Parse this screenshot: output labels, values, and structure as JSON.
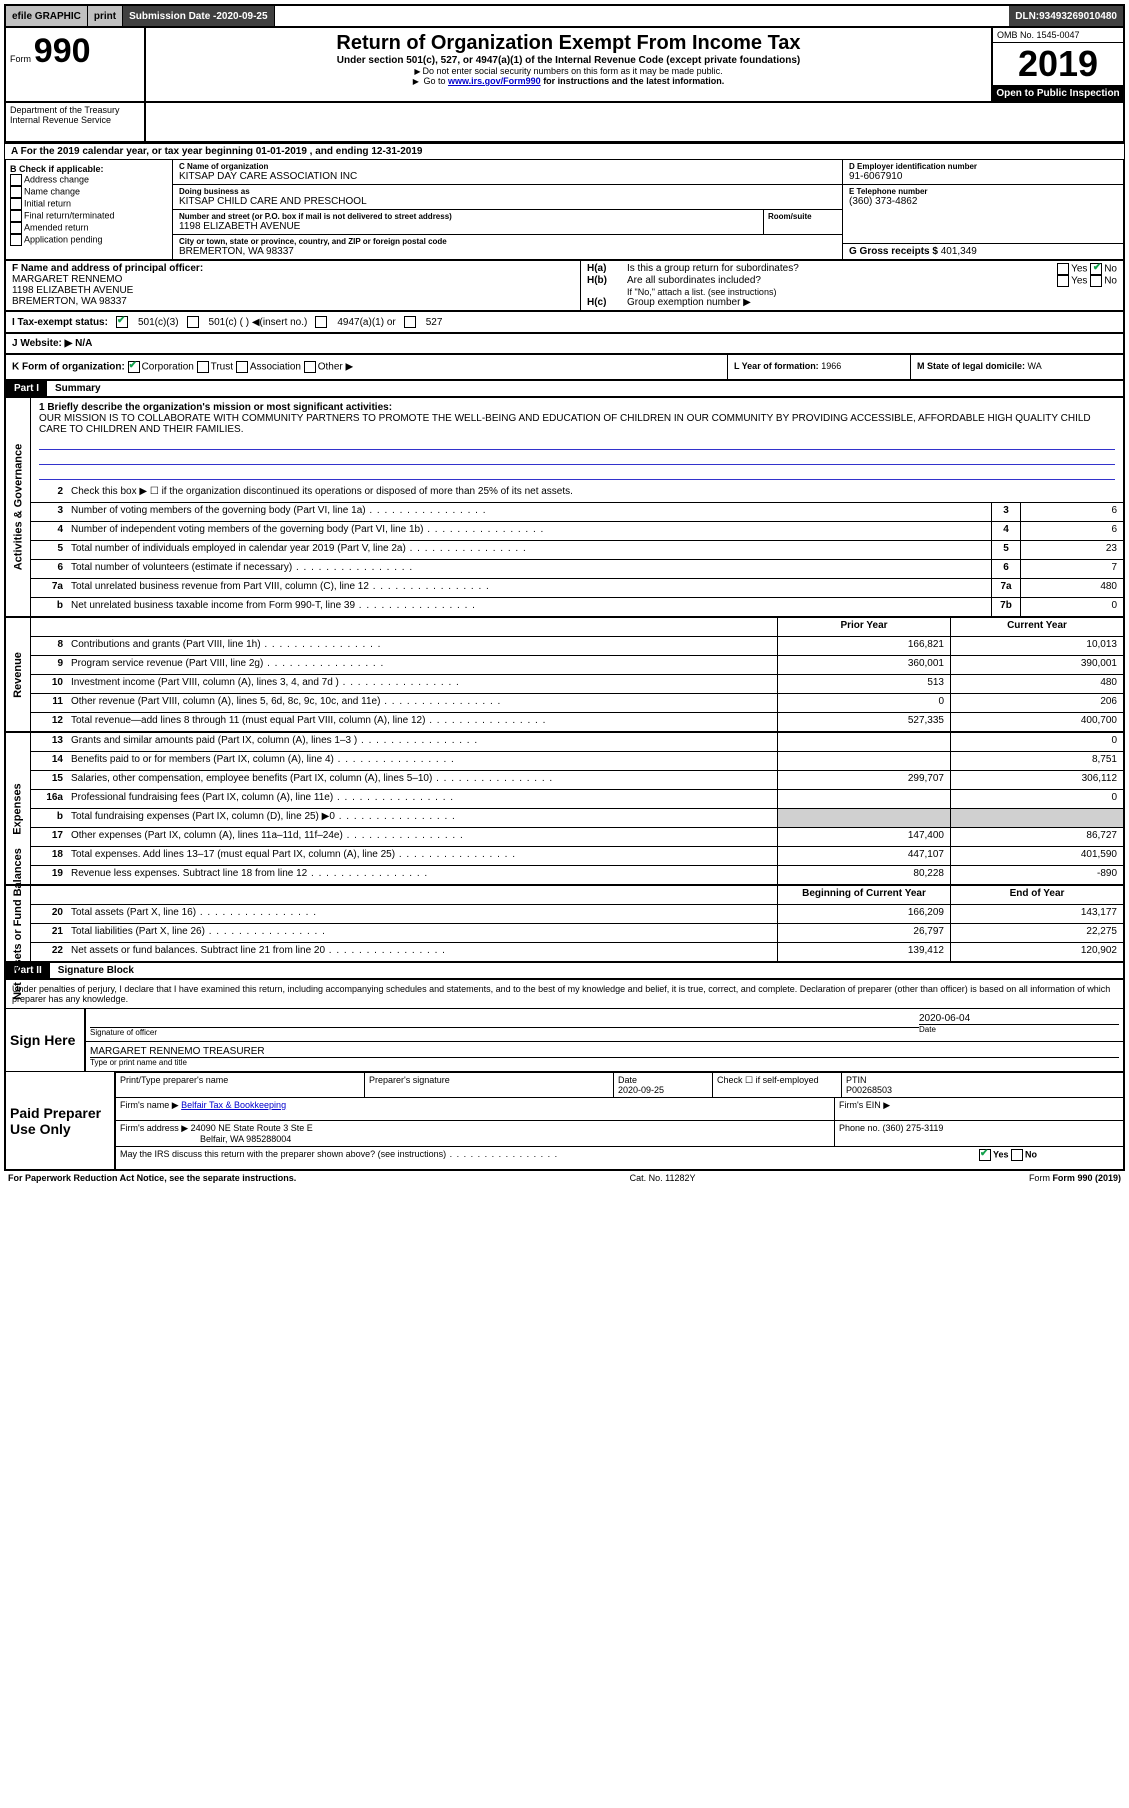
{
  "topbar": {
    "efile": "efile GRAPHIC",
    "print": "print",
    "subdate_label": "Submission Date - ",
    "subdate": "2020-09-25",
    "dln_label": "DLN: ",
    "dln": "93493269010480"
  },
  "header": {
    "form_prefix": "Form",
    "form_number": "990",
    "title": "Return of Organization Exempt From Income Tax",
    "subtitle": "Under section 501(c), 527, or 4947(a)(1) of the Internal Revenue Code (except private foundations)",
    "instr1": "Do not enter social security numbers on this form as it may be made public.",
    "instr2_pre": "Go to ",
    "instr2_link": "www.irs.gov/Form990",
    "instr2_post": " for instructions and the latest information.",
    "omb": "OMB No. 1545-0047",
    "year": "2019",
    "open": "Open to Public Inspection",
    "dept": "Department of the Treasury\nInternal Revenue Service"
  },
  "period": {
    "text": "A For the 2019 calendar year, or tax year beginning 01-01-2019   , and ending 12-31-2019"
  },
  "box_b": {
    "label": "B Check if applicable:",
    "opts": [
      "Address change",
      "Name change",
      "Initial return",
      "Final return/terminated",
      "Amended return",
      "Application pending"
    ]
  },
  "box_c": {
    "name_label": "C Name of organization",
    "name": "KITSAP DAY CARE ASSOCIATION INC",
    "dba_label": "Doing business as",
    "dba": "KITSAP CHILD CARE AND PRESCHOOL",
    "addr_label": "Number and street (or P.O. box if mail is not delivered to street address)",
    "room_label": "Room/suite",
    "addr": "1198 ELIZABETH AVENUE",
    "city_label": "City or town, state or province, country, and ZIP or foreign postal code",
    "city": "BREMERTON, WA  98337"
  },
  "box_d": {
    "label": "D Employer identification number",
    "ein": "91-6067910"
  },
  "box_e": {
    "label": "E Telephone number",
    "phone": "(360) 373-4862"
  },
  "box_g": {
    "label": "G Gross receipts $ ",
    "amount": "401,349"
  },
  "officer": {
    "label": "F Name and address of principal officer:",
    "name": "MARGARET RENNEMO",
    "addr1": "1198 ELIZABETH AVENUE",
    "addr2": "BREMERTON, WA  98337"
  },
  "box_h": {
    "ha_label": "H(a)",
    "ha_text": "Is this a group return for subordinates?",
    "ha_yes": "Yes",
    "ha_no": "No",
    "hb_label": "H(b)",
    "hb_text": "Are all subordinates included?",
    "hb_yes": "Yes",
    "hb_no": "No",
    "hb_note": "If \"No,\" attach a list. (see instructions)",
    "hc_label": "H(c)",
    "hc_text": "Group exemption number ▶"
  },
  "status": {
    "i_label": "I Tax-exempt status:",
    "opt1": "501(c)(3)",
    "opt2": "501(c) (  ) ◀(insert no.)",
    "opt3": "4947(a)(1) or",
    "opt4": "527"
  },
  "website": {
    "label": "J  Website: ▶",
    "value": "N/A"
  },
  "row_k": {
    "label": "K Form of organization:",
    "opt1": "Corporation",
    "opt2": "Trust",
    "opt3": "Association",
    "opt4": "Other ▶",
    "l_label": "L Year of formation: ",
    "l_val": "1966",
    "m_label": "M State of legal domicile: ",
    "m_val": "WA"
  },
  "part1": {
    "header": "Part I",
    "title": "Summary",
    "mission_label": "1  Briefly describe the organization's mission or most significant activities:",
    "mission": "OUR MISSION IS TO COLLABORATE WITH COMMUNITY PARTNERS TO PROMOTE THE WELL-BEING AND EDUCATION OF CHILDREN IN OUR COMMUNITY BY PROVIDING ACCESSIBLE, AFFORDABLE HIGH QUALITY CHILD CARE TO CHILDREN AND THEIR FAMILIES."
  },
  "governance": {
    "side": "Activities & Governance",
    "l2": "Check this box ▶ ☐ if the organization discontinued its operations or disposed of more than 25% of its net assets.",
    "rows": [
      {
        "n": "3",
        "d": "Number of voting members of the governing body (Part VI, line 1a)",
        "mn": "3",
        "mv": "6"
      },
      {
        "n": "4",
        "d": "Number of independent voting members of the governing body (Part VI, line 1b)",
        "mn": "4",
        "mv": "6"
      },
      {
        "n": "5",
        "d": "Total number of individuals employed in calendar year 2019 (Part V, line 2a)",
        "mn": "5",
        "mv": "23"
      },
      {
        "n": "6",
        "d": "Total number of volunteers (estimate if necessary)",
        "mn": "6",
        "mv": "7"
      },
      {
        "n": "7a",
        "d": "Total unrelated business revenue from Part VIII, column (C), line 12",
        "mn": "7a",
        "mv": "480"
      },
      {
        "n": "b",
        "d": "Net unrelated business taxable income from Form 990-T, line 39",
        "mn": "7b",
        "mv": "0"
      }
    ]
  },
  "cols": {
    "py": "Prior Year",
    "cy": "Current Year",
    "boy": "Beginning of Current Year",
    "eoy": "End of Year"
  },
  "revenue": {
    "side": "Revenue",
    "rows": [
      {
        "n": "8",
        "d": "Contributions and grants (Part VIII, line 1h)",
        "py": "166,821",
        "cy": "10,013"
      },
      {
        "n": "9",
        "d": "Program service revenue (Part VIII, line 2g)",
        "py": "360,001",
        "cy": "390,001"
      },
      {
        "n": "10",
        "d": "Investment income (Part VIII, column (A), lines 3, 4, and 7d )",
        "py": "513",
        "cy": "480"
      },
      {
        "n": "11",
        "d": "Other revenue (Part VIII, column (A), lines 5, 6d, 8c, 9c, 10c, and 11e)",
        "py": "0",
        "cy": "206"
      },
      {
        "n": "12",
        "d": "Total revenue—add lines 8 through 11 (must equal Part VIII, column (A), line 12)",
        "py": "527,335",
        "cy": "400,700"
      }
    ]
  },
  "expenses": {
    "side": "Expenses",
    "rows": [
      {
        "n": "13",
        "d": "Grants and similar amounts paid (Part IX, column (A), lines 1–3 )",
        "py": "",
        "cy": "0"
      },
      {
        "n": "14",
        "d": "Benefits paid to or for members (Part IX, column (A), line 4)",
        "py": "",
        "cy": "8,751"
      },
      {
        "n": "15",
        "d": "Salaries, other compensation, employee benefits (Part IX, column (A), lines 5–10)",
        "py": "299,707",
        "cy": "306,112"
      },
      {
        "n": "16a",
        "d": "Professional fundraising fees (Part IX, column (A), line 11e)",
        "py": "",
        "cy": "0"
      },
      {
        "n": "b",
        "d": "Total fundraising expenses (Part IX, column (D), line 25) ▶0",
        "py": "shaded",
        "cy": "shaded"
      },
      {
        "n": "17",
        "d": "Other expenses (Part IX, column (A), lines 11a–11d, 11f–24e)",
        "py": "147,400",
        "cy": "86,727"
      },
      {
        "n": "18",
        "d": "Total expenses. Add lines 13–17 (must equal Part IX, column (A), line 25)",
        "py": "447,107",
        "cy": "401,590"
      },
      {
        "n": "19",
        "d": "Revenue less expenses. Subtract line 18 from line 12",
        "py": "80,228",
        "cy": "-890"
      }
    ]
  },
  "netassets": {
    "side": "Net Assets or Fund Balances",
    "rows": [
      {
        "n": "20",
        "d": "Total assets (Part X, line 16)",
        "py": "166,209",
        "cy": "143,177"
      },
      {
        "n": "21",
        "d": "Total liabilities (Part X, line 26)",
        "py": "26,797",
        "cy": "22,275"
      },
      {
        "n": "22",
        "d": "Net assets or fund balances. Subtract line 21 from line 20",
        "py": "139,412",
        "cy": "120,902"
      }
    ]
  },
  "part2": {
    "header": "Part II",
    "title": "Signature Block",
    "intro": "Under penalties of perjury, I declare that I have examined this return, including accompanying schedules and statements, and to the best of my knowledge and belief, it is true, correct, and complete. Declaration of preparer (other than officer) is based on all information of which preparer has any knowledge."
  },
  "sign": {
    "label": "Sign Here",
    "sig_label": "Signature of officer",
    "date_label": "Date",
    "date": "2020-06-04",
    "name": "MARGARET RENNEMO  TREASURER",
    "name_label": "Type or print name and title"
  },
  "preparer": {
    "label": "Paid Preparer Use Only",
    "name_label": "Print/Type preparer's name",
    "sig_label": "Preparer's signature",
    "date_label": "Date",
    "date": "2020-09-25",
    "check_label": "Check ☐ if self-employed",
    "ptin_label": "PTIN",
    "ptin": "P00268503",
    "firm_label": "Firm's name ▶",
    "firm": "Belfair Tax & Bookkeeping",
    "ein_label": "Firm's EIN ▶",
    "addr_label": "Firm's address ▶",
    "addr1": "24090 NE State Route 3 Ste E",
    "addr2": "Belfair, WA  985288004",
    "phone_label": "Phone no. ",
    "phone": "(360) 275-3119",
    "discuss": "May the IRS discuss this return with the preparer shown above? (see instructions)",
    "yes": "Yes",
    "no": "No"
  },
  "footer": {
    "left": "For Paperwork Reduction Act Notice, see the separate instructions.",
    "mid": "Cat. No. 11282Y",
    "right": "Form 990 (2019)"
  }
}
